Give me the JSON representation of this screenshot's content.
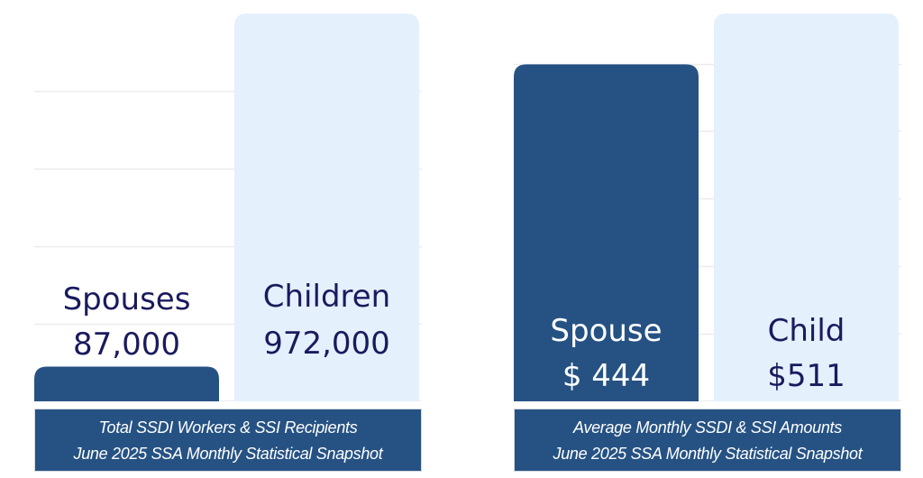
{
  "colors": {
    "navy": "#265283",
    "light": "#e4f0fc",
    "grid": "#ececec",
    "dark_text": "#1a1a5e",
    "white_text": "#ffffff"
  },
  "chart_data": [
    {
      "type": "bar",
      "title": "Total SSDI Workers & SSI Recipients",
      "subtitle": "June 2025 SSA Monthly Statistical Snapshot",
      "categories": [
        "Spouses",
        "Children"
      ],
      "values": [
        87000,
        972000
      ],
      "value_labels": [
        "87,000",
        "972,000"
      ],
      "bar_colors": [
        "#265283",
        "#e4f0fc"
      ],
      "label_colors": [
        "#1a1a5e",
        "#1a1a5e"
      ],
      "label_inside": [
        false,
        true
      ],
      "ylim": [
        0,
        972000
      ],
      "gridline_values": [
        194400,
        388800,
        583200,
        777600
      ],
      "grid": true,
      "legend": "none",
      "xlabel": "",
      "ylabel": ""
    },
    {
      "type": "bar",
      "title": "Average Monthly SSDI & SSI Amounts",
      "subtitle": "June 2025 SSA Monthly Statistical Snapshot",
      "categories": [
        "Spouse",
        "Child"
      ],
      "values": [
        444,
        511
      ],
      "value_labels": [
        "$ 444",
        "$511"
      ],
      "bar_colors": [
        "#265283",
        "#e4f0fc"
      ],
      "label_colors": [
        "#ffffff",
        "#1a1a5e"
      ],
      "label_inside": [
        true,
        true
      ],
      "ylim": [
        0,
        511
      ],
      "gridline_values": [
        89,
        178,
        267,
        356,
        445
      ],
      "grid": true,
      "legend": "none",
      "xlabel": "",
      "ylabel": ""
    }
  ]
}
